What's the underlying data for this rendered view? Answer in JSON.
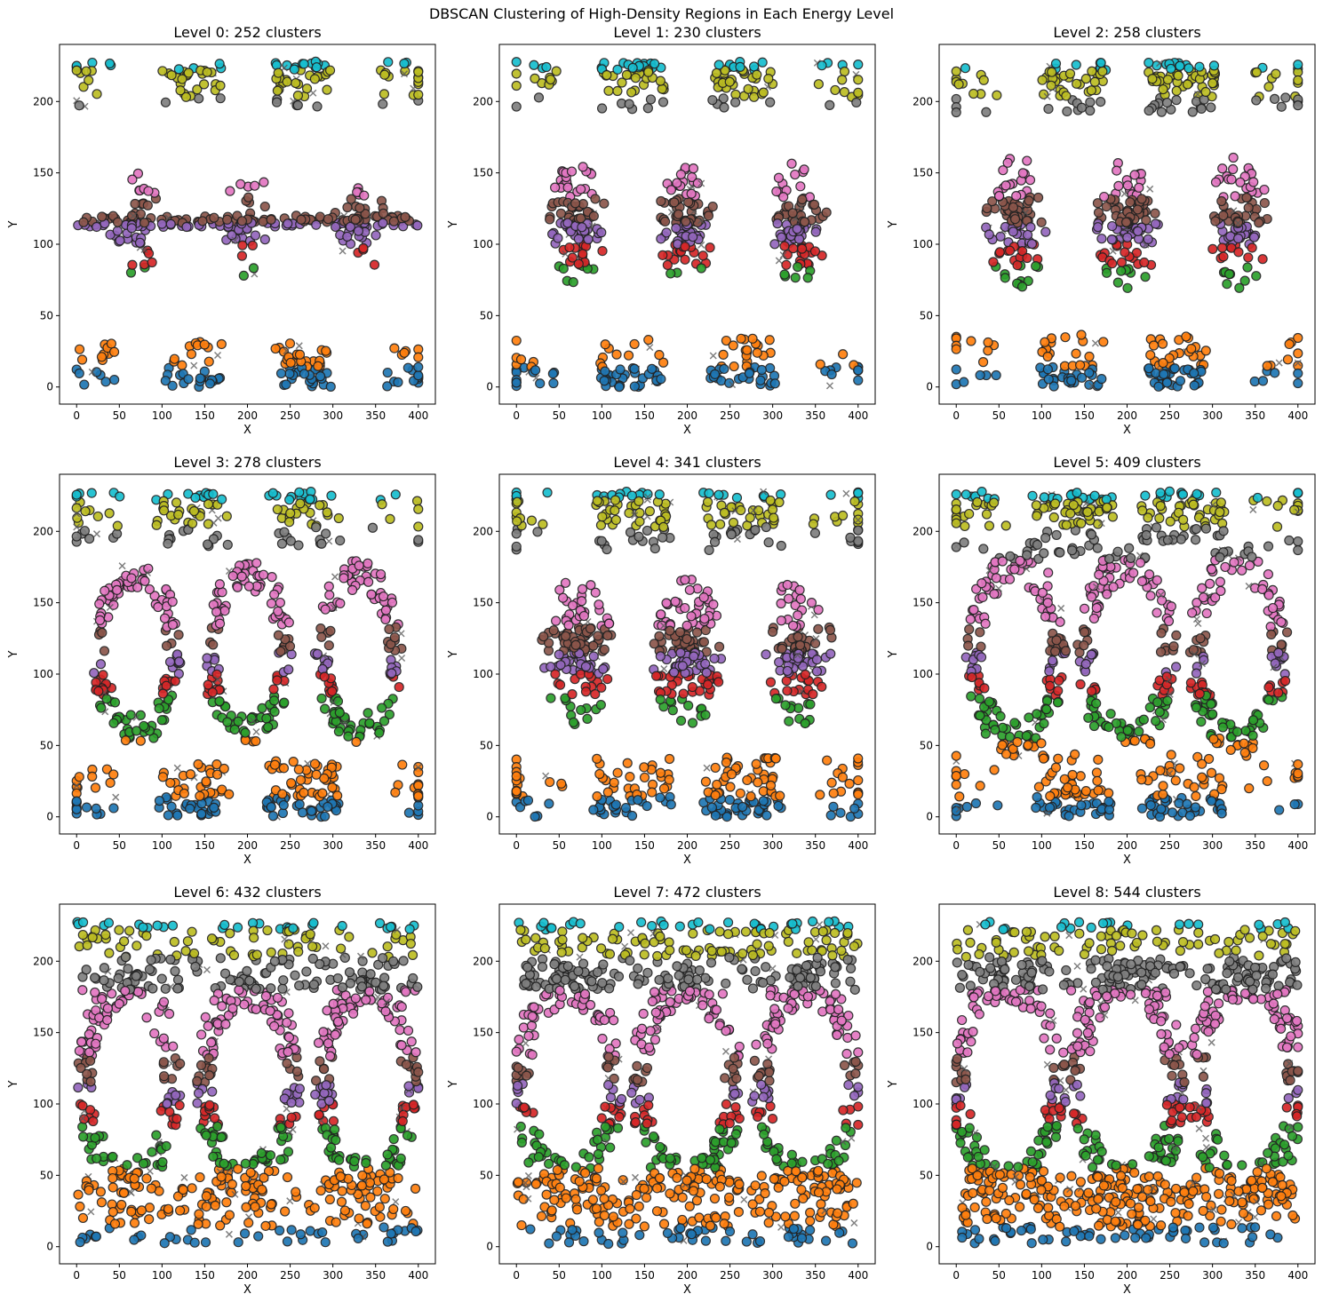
{
  "figure": {
    "title": "DBSCAN Clustering of High-Density Regions in Each Energy Level"
  },
  "chart_data": {
    "type": "scatter",
    "grid": false,
    "legend": "none",
    "colors": [
      "#1f77b4",
      "#ff7f0e",
      "#2ca02c",
      "#d62728",
      "#9467bd",
      "#8c564b",
      "#e377c2",
      "#7f7f7f",
      "#bcbd22",
      "#17becf"
    ],
    "noise_color": "#555555",
    "panels": [
      {
        "title": "Level 0: 252 clusters",
        "xlabel": "X",
        "ylabel": "Y",
        "xlim": [
          -20,
          420
        ],
        "ylim": [
          -12,
          240
        ],
        "xticks": [
          0,
          50,
          100,
          150,
          200,
          250,
          300,
          350,
          400
        ],
        "yticks": [
          0,
          50,
          100,
          150,
          200
        ]
      },
      {
        "title": "Level 1: 230 clusters",
        "xlabel": "X",
        "ylabel": "Y",
        "xlim": [
          -20,
          420
        ],
        "ylim": [
          -12,
          240
        ],
        "xticks": [
          0,
          50,
          100,
          150,
          200,
          250,
          300,
          350,
          400
        ],
        "yticks": [
          0,
          50,
          100,
          150,
          200
        ]
      },
      {
        "title": "Level 2: 258 clusters",
        "xlabel": "X",
        "ylabel": "Y",
        "xlim": [
          -20,
          420
        ],
        "ylim": [
          -12,
          240
        ],
        "xticks": [
          0,
          50,
          100,
          150,
          200,
          250,
          300,
          350,
          400
        ],
        "yticks": [
          0,
          50,
          100,
          150,
          200
        ]
      },
      {
        "title": "Level 3: 278 clusters",
        "xlabel": "X",
        "ylabel": "Y",
        "xlim": [
          -20,
          420
        ],
        "ylim": [
          -12,
          240
        ],
        "xticks": [
          0,
          50,
          100,
          150,
          200,
          250,
          300,
          350,
          400
        ],
        "yticks": [
          0,
          50,
          100,
          150,
          200
        ]
      },
      {
        "title": "Level 4: 341 clusters",
        "xlabel": "X",
        "ylabel": "Y",
        "xlim": [
          -20,
          420
        ],
        "ylim": [
          -12,
          240
        ],
        "xticks": [
          0,
          50,
          100,
          150,
          200,
          250,
          300,
          350,
          400
        ],
        "yticks": [
          0,
          50,
          100,
          150,
          200
        ]
      },
      {
        "title": "Level 5: 409 clusters",
        "xlabel": "X",
        "ylabel": "Y",
        "xlim": [
          -20,
          420
        ],
        "ylim": [
          -12,
          240
        ],
        "xticks": [
          0,
          50,
          100,
          150,
          200,
          250,
          300,
          350,
          400
        ],
        "yticks": [
          0,
          50,
          100,
          150,
          200
        ]
      },
      {
        "title": "Level 6: 432 clusters",
        "xlabel": "X",
        "ylabel": "Y",
        "xlim": [
          -20,
          420
        ],
        "ylim": [
          -12,
          240
        ],
        "xticks": [
          0,
          50,
          100,
          150,
          200,
          250,
          300,
          350,
          400
        ],
        "yticks": [
          0,
          50,
          100,
          150,
          200
        ]
      },
      {
        "title": "Level 7: 472 clusters",
        "xlabel": "X",
        "ylabel": "Y",
        "xlim": [
          -20,
          420
        ],
        "ylim": [
          -12,
          240
        ],
        "xticks": [
          0,
          50,
          100,
          150,
          200,
          250,
          300,
          350,
          400
        ],
        "yticks": [
          0,
          50,
          100,
          150,
          200
        ]
      },
      {
        "title": "Level 8: 544 clusters",
        "xlabel": "X",
        "ylabel": "Y",
        "xlim": [
          -20,
          420
        ],
        "ylim": [
          -12,
          240
        ],
        "xticks": [
          0,
          50,
          100,
          150,
          200,
          250,
          300,
          350,
          400
        ],
        "yticks": [
          0,
          50,
          100,
          150,
          200
        ]
      }
    ]
  }
}
